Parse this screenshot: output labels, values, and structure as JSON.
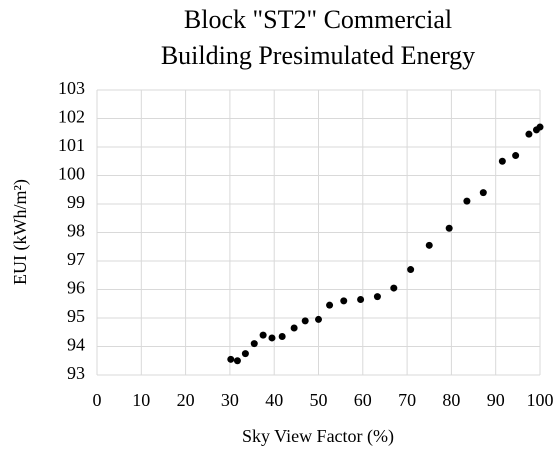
{
  "chart_data": {
    "type": "scatter",
    "title": [
      "Block \"ST2\" Commercial",
      "Building Presimulated Energy"
    ],
    "x_label": "Sky View Factor (%)",
    "y_label": "EUI (kWh/m²)",
    "x": [
      30.2,
      31.7,
      33.5,
      35.5,
      37.5,
      39.5,
      41.8,
      44.5,
      47,
      50,
      52.5,
      55.7,
      59.5,
      63.3,
      67,
      70.8,
      75,
      79.5,
      83.5,
      87.2,
      91.5,
      94.5,
      97.5,
      99.2,
      100
    ],
    "values": [
      93.55,
      93.5,
      93.75,
      94.1,
      94.4,
      94.3,
      94.35,
      94.65,
      94.9,
      94.95,
      95.45,
      95.6,
      95.65,
      95.75,
      96.05,
      96.7,
      97.55,
      98.15,
      99.1,
      99.4,
      100.5,
      100.7,
      101.45,
      101.6,
      101.7
    ],
    "color": "#000000",
    "xlim": [
      0,
      100
    ],
    "xticks": [
      0,
      10,
      20,
      30,
      40,
      50,
      60,
      70,
      80,
      90,
      100
    ],
    "ylim": [
      93,
      103
    ],
    "yticks": [
      93,
      94,
      95,
      96,
      97,
      98,
      99,
      100,
      101,
      102,
      103
    ],
    "grid": true
  }
}
